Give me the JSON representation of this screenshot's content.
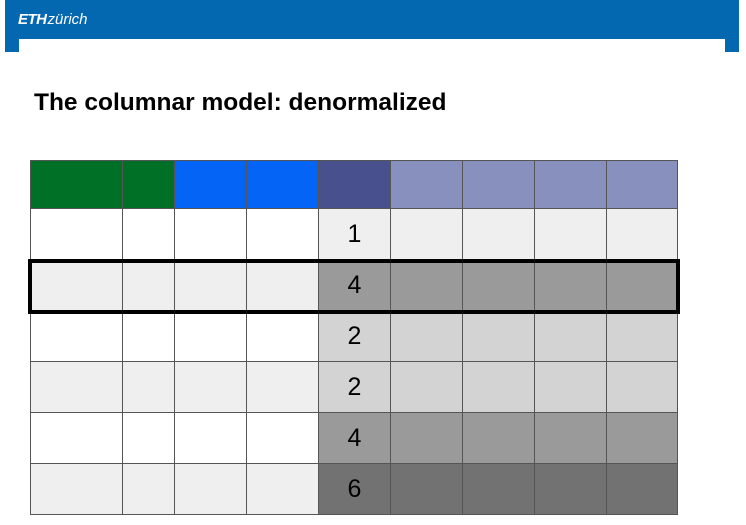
{
  "header": {
    "logo_bold": "ETH",
    "logo_italic": "zürich",
    "band_color": "#0468b0"
  },
  "slide": {
    "title": "The columnar model: denormalized"
  },
  "table": {
    "header_colors": [
      "#007026",
      "#007026",
      "#0364f5",
      "#0364f5",
      "#49508e",
      "#8890bd",
      "#8890bd",
      "#8890bd",
      "#8890bd"
    ],
    "rows": [
      {
        "value": "1",
        "left_color": "#ffffff",
        "key_color": "#efefef",
        "right_color": "#efefef"
      },
      {
        "value": "4",
        "left_color": "#efefef",
        "key_color": "#9a9a9a",
        "right_color": "#9a9a9a"
      },
      {
        "value": "2",
        "left_color": "#ffffff",
        "key_color": "#d3d3d3",
        "right_color": "#d3d3d3"
      },
      {
        "value": "2",
        "left_color": "#efefef",
        "key_color": "#d3d3d3",
        "right_color": "#d3d3d3"
      },
      {
        "value": "4",
        "left_color": "#ffffff",
        "key_color": "#9a9a9a",
        "right_color": "#9a9a9a"
      },
      {
        "value": "6",
        "left_color": "#efefef",
        "key_color": "#727272",
        "right_color": "#727272"
      }
    ],
    "highlighted_row": 1
  }
}
